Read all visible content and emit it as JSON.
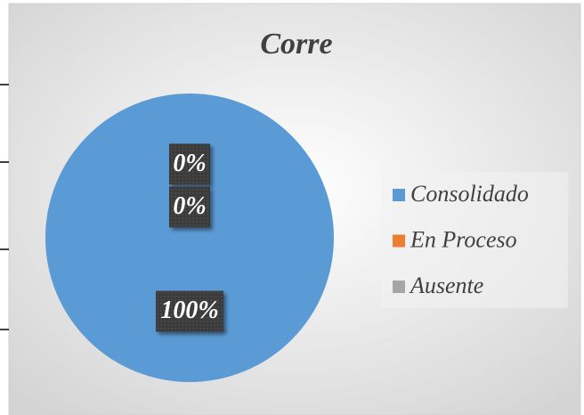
{
  "chart_data": {
    "type": "pie",
    "title": "Corre",
    "categories": [
      "Consolidado",
      "En Proceso",
      "Ausente"
    ],
    "values": [
      100,
      0,
      0
    ],
    "value_labels": [
      "100%",
      "0%",
      "0%"
    ],
    "colors": [
      "#5b9bd5",
      "#ed7d31",
      "#a5a5a5"
    ],
    "legend": "right"
  }
}
